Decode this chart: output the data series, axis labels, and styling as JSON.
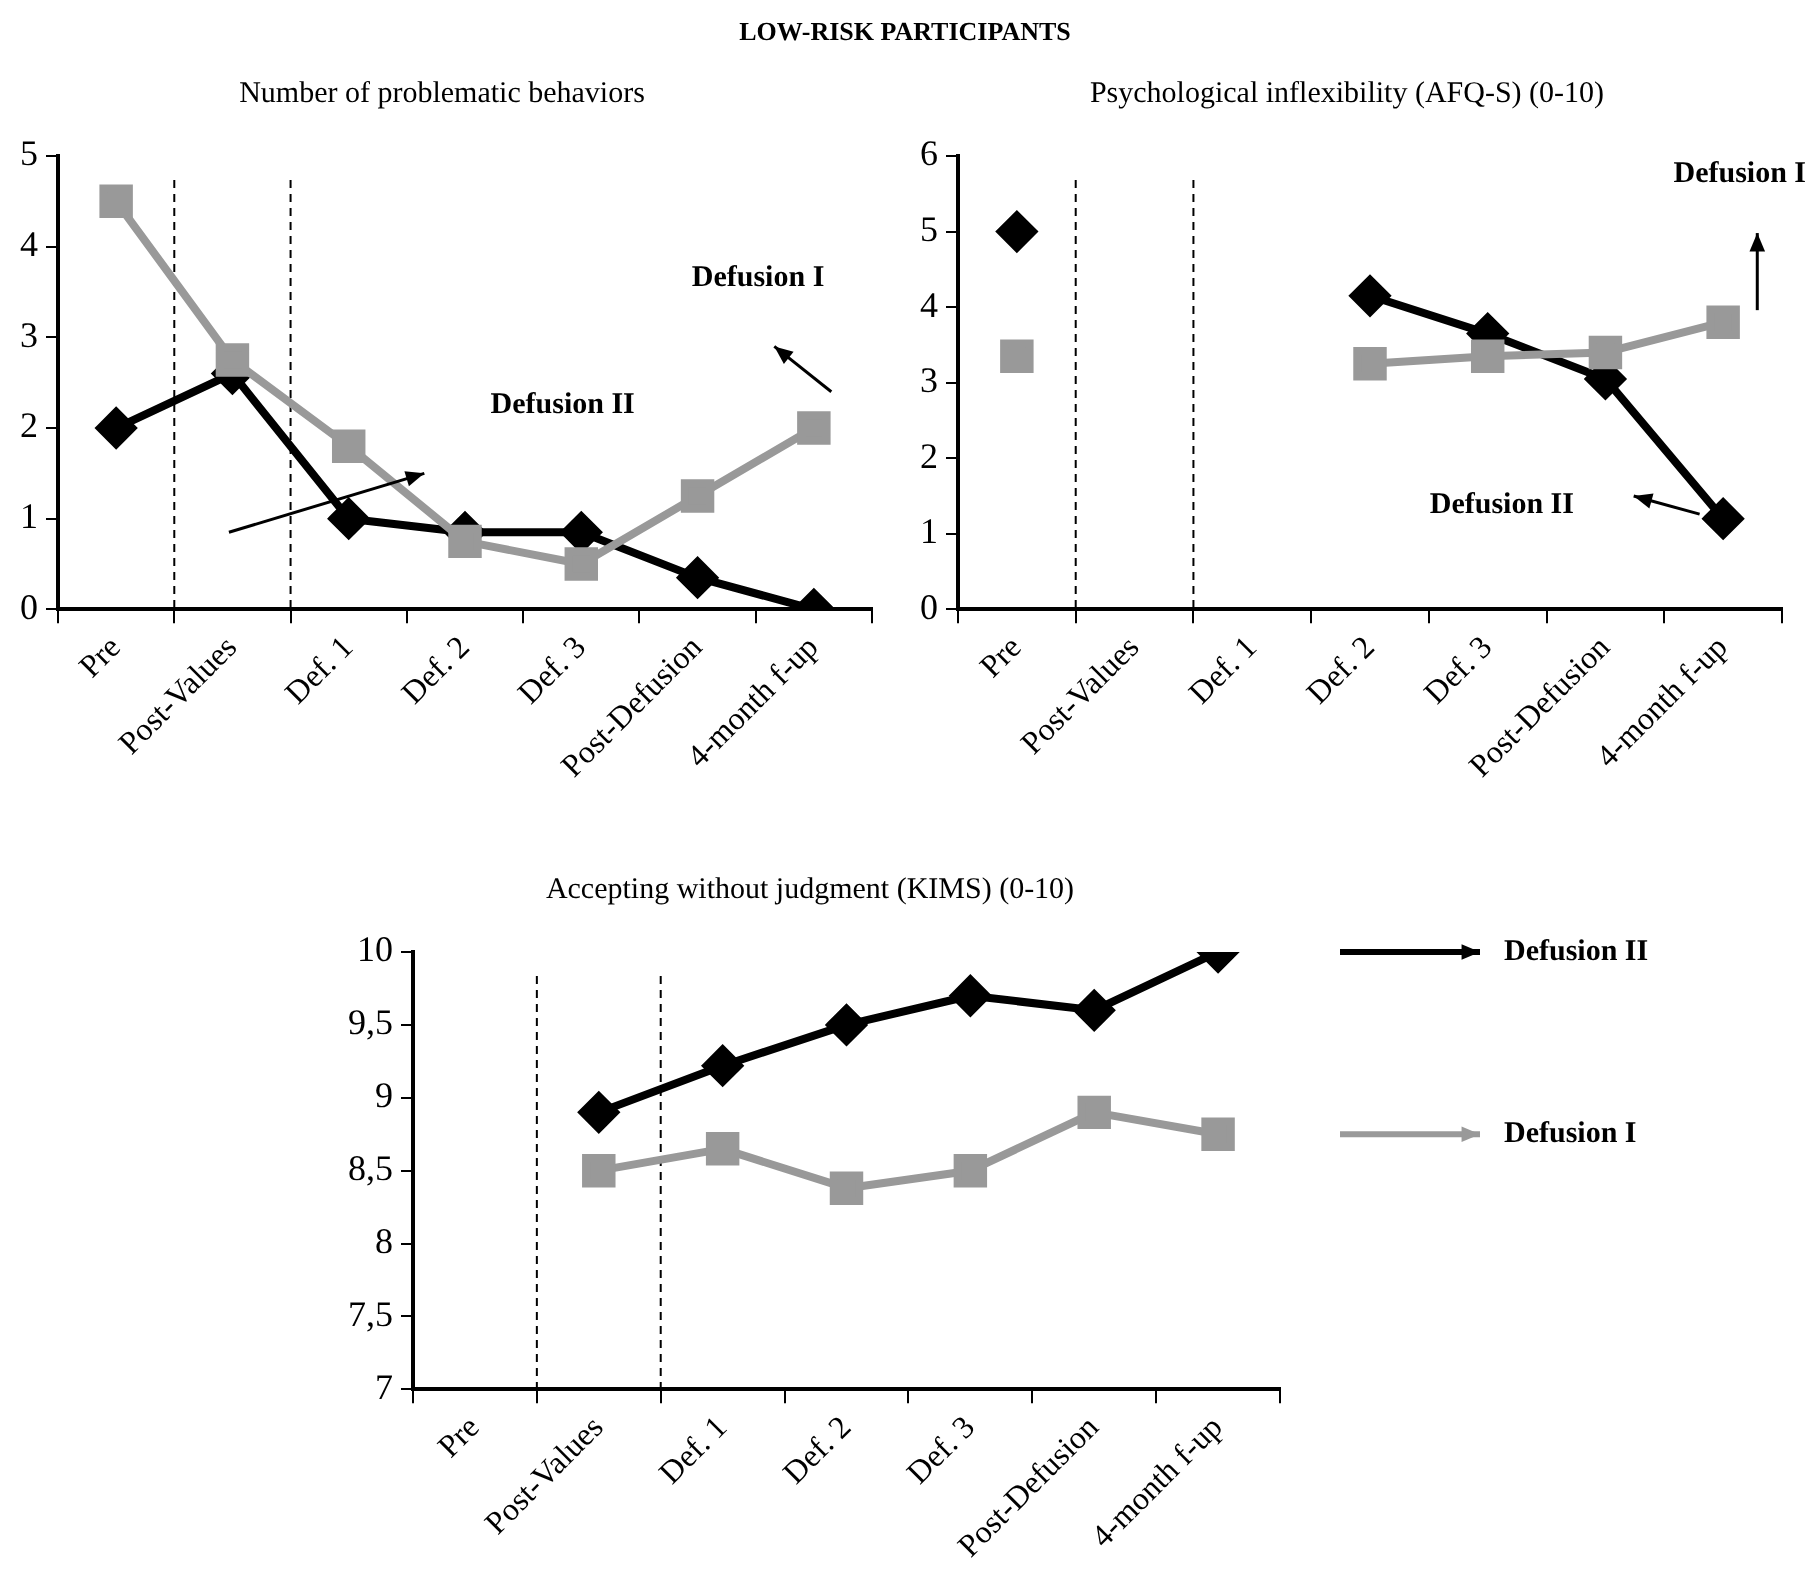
{
  "chart_data": [
    {
      "type": "line",
      "title": "LOW-RISK PARTICIPANTS",
      "subtitle": "Number of problematic behaviors",
      "categories": [
        "Pre",
        "Post-Values",
        "Def. 1",
        "Def. 2",
        "Def. 3",
        "Post-Defusion",
        "4-month f-up"
      ],
      "series": [
        {
          "color": "#000000",
          "marker": "diamond",
          "values": [
            2,
            2.6,
            1,
            0.85,
            0.85,
            0.35,
            0
          ]
        },
        {
          "color": "#999999",
          "marker": "square",
          "values": [
            4.5,
            2.75,
            1.8,
            0.75,
            0.5,
            1.25,
            2
          ]
        }
      ],
      "ylim": [
        0,
        5
      ],
      "yticks": [
        0,
        1,
        2,
        3,
        4,
        5
      ],
      "grid": false,
      "line_style": "solid",
      "annotations": [
        "Defusion I",
        "Defusion II"
      ]
    },
    {
      "type": "line",
      "title": "Psychological inflexibility (AFQ-S) (0-10)",
      "categories": [
        "Pre",
        "Post-Values",
        "Def. 1",
        "Def. 2",
        "Def. 3",
        "Post-Defusion",
        "4-month f-up"
      ],
      "series": [
        {
          "color": "#000000",
          "marker": "diamond",
          "values": [
            5,
            null,
            null,
            4.15,
            3.65,
            3.05,
            1.2
          ]
        },
        {
          "color": "#999999",
          "marker": "square",
          "values": [
            3.35,
            null,
            null,
            3.25,
            3.35,
            3.4,
            3.8
          ]
        }
      ],
      "ylim": [
        0,
        6
      ],
      "yticks": [
        0,
        1,
        2,
        3,
        4,
        5,
        6
      ],
      "grid": false,
      "line_style": "solid",
      "annotations": [
        "Defusion I",
        "Defusion II"
      ]
    },
    {
      "type": "line",
      "title": "Accepting without judgment (KIMS) (0-10)",
      "categories": [
        "Pre",
        "Post-Values",
        "Def. 1",
        "Def. 2",
        "Def. 3",
        "Post-Defusion",
        "4-month f-up"
      ],
      "series": [
        {
          "name": "Defusion II",
          "color": "#000000",
          "marker": "diamond",
          "values": [
            null,
            8.9,
            9.22,
            9.5,
            9.7,
            9.6,
            10
          ]
        },
        {
          "name": "Defusion I",
          "color": "#999999",
          "marker": "square",
          "values": [
            null,
            8.5,
            8.65,
            8.38,
            8.5,
            8.9,
            8.75
          ]
        }
      ],
      "ylim": [
        7,
        10
      ],
      "yticks": [
        7,
        {
          "value": 7.5,
          "label": "7,5"
        },
        8,
        {
          "value": 8.5,
          "label": "8,5"
        },
        9,
        {
          "value": 9.5,
          "label": "9,5"
        },
        10
      ],
      "grid": false,
      "line_style": "solid",
      "legend": "right"
    }
  ]
}
